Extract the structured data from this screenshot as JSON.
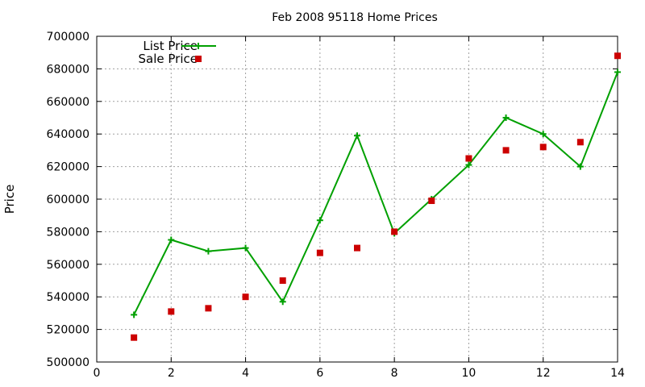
{
  "chart_data": {
    "type": "line",
    "title": "Feb 2008 95118 Home Prices",
    "xlabel": "",
    "ylabel": "Price",
    "xlim": [
      0,
      14
    ],
    "ylim": [
      500000,
      700000
    ],
    "x_ticks": [
      0,
      2,
      4,
      6,
      8,
      10,
      12,
      14
    ],
    "y_ticks": [
      500000,
      520000,
      540000,
      560000,
      580000,
      600000,
      620000,
      640000,
      660000,
      680000,
      700000
    ],
    "grid": true,
    "legend_position": "top-left",
    "series": [
      {
        "name": "List Price",
        "style": "lines+points",
        "marker": "plus",
        "color": "#00a000",
        "x": [
          1,
          2,
          3,
          4,
          5,
          6,
          7,
          8,
          9,
          10,
          11,
          12,
          13,
          14
        ],
        "y": [
          529000,
          575000,
          568000,
          570000,
          537000,
          587000,
          639000,
          579000,
          600000,
          621000,
          650000,
          640000,
          620000,
          678000
        ]
      },
      {
        "name": "Sale Price",
        "style": "points",
        "marker": "square",
        "color": "#cc0000",
        "x": [
          1,
          2,
          3,
          4,
          5,
          6,
          7,
          8,
          9,
          10,
          11,
          12,
          13,
          14
        ],
        "y": [
          515000,
          531000,
          533000,
          540000,
          550000,
          567000,
          570000,
          580000,
          599000,
          625000,
          630000,
          632000,
          635000,
          688000
        ]
      }
    ]
  }
}
